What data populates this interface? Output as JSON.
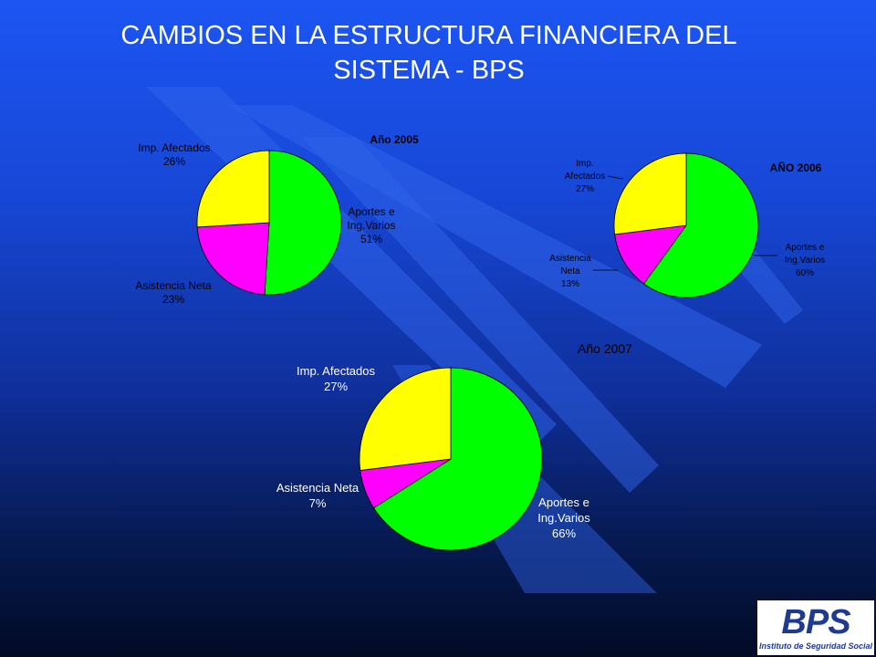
{
  "title": {
    "line1": "CAMBIOS EN LA ESTRUCTURA FINANCIERA DEL",
    "line2": "SISTEMA - BPS"
  },
  "logo": {
    "mark": "BPS",
    "caption": "Instituto de Seguridad Social"
  },
  "colors": {
    "aportes": "#00ff00",
    "asistencia": "#ff00ff",
    "impuestos": "#ffff00",
    "label_dark": "#000000",
    "label_light": "#ffffff"
  },
  "chart_data": [
    {
      "type": "pie",
      "title": "Año 2005",
      "slices": [
        {
          "name": "Aportes e Ing.Varios",
          "value": 51,
          "label_lines": [
            "Aportes e",
            "Ing.Varios",
            "51%"
          ],
          "color_key": "aportes"
        },
        {
          "name": "Asistencia Neta",
          "value": 23,
          "label_lines": [
            "Asistencia Neta",
            "23%"
          ],
          "color_key": "asistencia"
        },
        {
          "name": "Imp. Afectados",
          "value": 26,
          "label_lines": [
            "Imp. Afectados",
            "26%"
          ],
          "color_key": "impuestos"
        }
      ]
    },
    {
      "type": "pie",
      "title": "AÑO 2006",
      "slices": [
        {
          "name": "Aportes e Ing.Varios",
          "value": 60,
          "label_lines": [
            "Aportes e",
            "Ing.Varios",
            "60%"
          ],
          "color_key": "aportes"
        },
        {
          "name": "Asistencia Neta",
          "value": 13,
          "label_lines": [
            "Asistencia",
            "Neta",
            "13%"
          ],
          "color_key": "asistencia"
        },
        {
          "name": "Imp. Afectados",
          "value": 27,
          "label_lines": [
            "Imp.",
            "Afectados",
            "27%"
          ],
          "color_key": "impuestos"
        }
      ]
    },
    {
      "type": "pie",
      "title": "Año 2007",
      "slices": [
        {
          "name": "Aportes e Ing.Varios",
          "value": 66,
          "label_lines": [
            "Aportes e",
            "Ing.Varios",
            "66%"
          ],
          "color_key": "aportes"
        },
        {
          "name": "Asistencia Neta",
          "value": 7,
          "label_lines": [
            "Asistencia Neta",
            "7%"
          ],
          "color_key": "asistencia"
        },
        {
          "name": "Imp. Afectados",
          "value": 27,
          "label_lines": [
            "Imp. Afectados",
            "27%"
          ],
          "color_key": "impuestos"
        }
      ]
    }
  ]
}
